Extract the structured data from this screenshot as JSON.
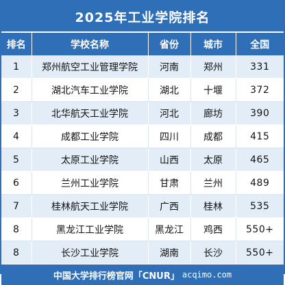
{
  "title": "2025年工业学院排名",
  "columns": {
    "rank": "排名",
    "school": "学校名称",
    "province": "省份",
    "city": "城市",
    "national": "全国"
  },
  "rows": [
    {
      "rank": "1",
      "school": "郑州航空工业管理学院",
      "province": "河南",
      "city": "郑州",
      "national": "331"
    },
    {
      "rank": "2",
      "school": "湖北汽车工业学院",
      "province": "湖北",
      "city": "十堰",
      "national": "372"
    },
    {
      "rank": "3",
      "school": "北华航天工业学院",
      "province": "河北",
      "city": "廊坊",
      "national": "390"
    },
    {
      "rank": "4",
      "school": "成都工业学院",
      "province": "四川",
      "city": "成都",
      "national": "415"
    },
    {
      "rank": "5",
      "school": "太原工业学院",
      "province": "山西",
      "city": "太原",
      "national": "465"
    },
    {
      "rank": "6",
      "school": "兰州工业学院",
      "province": "甘肃",
      "city": "兰州",
      "national": "489"
    },
    {
      "rank": "7",
      "school": "桂林航天工业学院",
      "province": "广西",
      "city": "桂林",
      "national": "535"
    },
    {
      "rank": "8",
      "school": "黑龙江工业学院",
      "province": "黑龙江",
      "city": "鸡西",
      "national": "550+"
    },
    {
      "rank": "8",
      "school": "长沙工业学院",
      "province": "湖南",
      "city": "长沙",
      "national": "550+"
    }
  ],
  "footer": {
    "brand": "中国大学排行榜官网「CNUR」",
    "site": "acqimo.com"
  },
  "colors": {
    "header_blue": "#2f6fb8",
    "stripe_light_blue": "#e3edf8"
  }
}
